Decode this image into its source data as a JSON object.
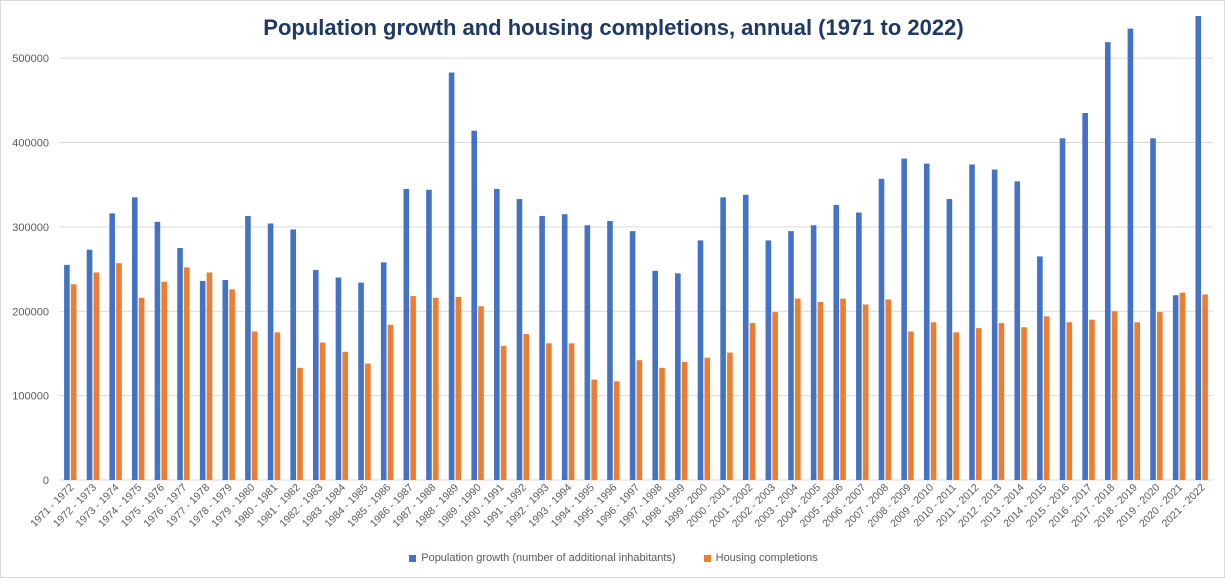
{
  "chart_data": {
    "type": "bar",
    "title": "Population growth and housing completions, annual (1971 to 2022)",
    "xlabel": "",
    "ylabel": "",
    "ylim": [
      0,
      550000
    ],
    "yticks": [
      0,
      100000,
      200000,
      300000,
      400000,
      500000
    ],
    "grid": true,
    "legend_position": "bottom",
    "categories": [
      "1971 - 1972",
      "1972 - 1973",
      "1973 - 1974",
      "1974 - 1975",
      "1975 - 1976",
      "1976 - 1977",
      "1977 - 1978",
      "1978 - 1979",
      "1979 - 1980",
      "1980 - 1981",
      "1981 - 1982",
      "1982 - 1983",
      "1983 - 1984",
      "1984 - 1985",
      "1985 - 1986",
      "1986 - 1987",
      "1987 - 1988",
      "1988 - 1989",
      "1989 - 1990",
      "1990 - 1991",
      "1991 - 1992",
      "1992 - 1993",
      "1993 - 1994",
      "1994 - 1995",
      "1995 - 1996",
      "1996 - 1997",
      "1997 - 1998",
      "1998 - 1999",
      "1999 - 2000",
      "2000 - 2001",
      "2001 - 2002",
      "2002 - 2003",
      "2003 - 2004",
      "2004 - 2005",
      "2005 - 2006",
      "2006 - 2007",
      "2007 - 2008",
      "2008 - 2009",
      "2009 - 2010",
      "2010 - 2011",
      "2011 - 2012",
      "2012 - 2013",
      "2013 - 2014",
      "2014 - 2015",
      "2015 - 2016",
      "2016 - 2017",
      "2017 - 2018",
      "2018 - 2019",
      "2019 - 2020",
      "2020 - 2021",
      "2021 - 2022"
    ],
    "series": [
      {
        "name": "Population growth (number of additional inhabitants)",
        "color": "#4472c4",
        "values": [
          255000,
          273000,
          316000,
          335000,
          306000,
          275000,
          236000,
          237000,
          313000,
          304000,
          297000,
          249000,
          240000,
          234000,
          258000,
          345000,
          344000,
          483000,
          414000,
          345000,
          333000,
          313000,
          315000,
          302000,
          307000,
          295000,
          248000,
          245000,
          284000,
          335000,
          338000,
          284000,
          295000,
          302000,
          326000,
          317000,
          357000,
          381000,
          375000,
          333000,
          374000,
          368000,
          354000,
          265000,
          405000,
          435000,
          519000,
          535000,
          405000,
          219000,
          550000
        ]
      },
      {
        "name": "Housing completions",
        "color": "#ed7d31",
        "values": [
          232000,
          246000,
          257000,
          216000,
          235000,
          252000,
          246000,
          226000,
          176000,
          175000,
          133000,
          163000,
          152000,
          138000,
          184000,
          218000,
          216000,
          217000,
          206000,
          159000,
          173000,
          162000,
          162000,
          119000,
          117000,
          142000,
          133000,
          140000,
          145000,
          151000,
          186000,
          199000,
          215000,
          211000,
          215000,
          208000,
          214000,
          176000,
          187000,
          175000,
          180000,
          186000,
          181000,
          194000,
          187000,
          190000,
          200000,
          187000,
          199000,
          222000,
          220000
        ]
      }
    ]
  }
}
